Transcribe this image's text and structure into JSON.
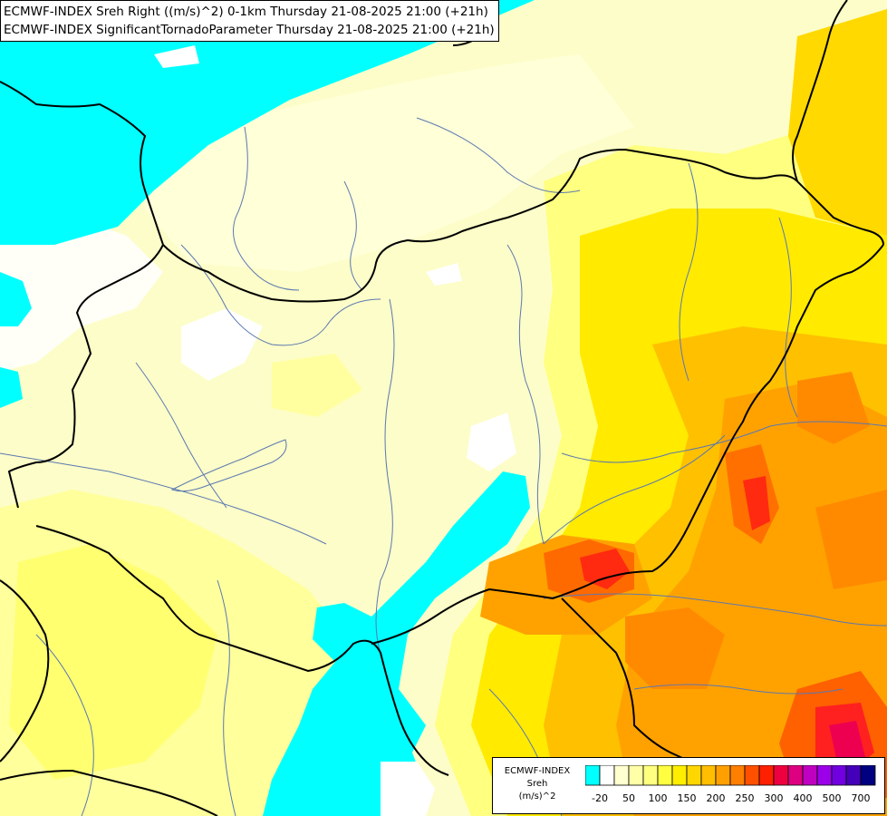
{
  "title": {
    "line1": "ECMWF-INDEX Sreh Right ((m/s)^2) 0-1km Thursday 21-08-2025 21:00 (+21h)",
    "line2": "ECMWF-INDEX SignificantTornadoParameter Thursday 21-08-2025 21:00 (+21h)"
  },
  "legend": {
    "line1": "ECMWF-INDEX",
    "line2": "Sreh",
    "line3": "(m/s)^2",
    "colors": [
      "#00ffff",
      "#ffffff",
      "#ffffd0",
      "#ffffa8",
      "#ffff80",
      "#ffff40",
      "#ffee00",
      "#ffd700",
      "#ffbe00",
      "#ffa000",
      "#ff7f00",
      "#ff5000",
      "#ff2000",
      "#ee0040",
      "#dd0080",
      "#c000c0",
      "#9b00e8",
      "#7000e0",
      "#4400b8",
      "#000080"
    ],
    "tick_labels": [
      "-20",
      "50",
      "100",
      "150",
      "200",
      "250",
      "300",
      "400",
      "500",
      "700"
    ]
  },
  "colors": {
    "background": "#fdfdc9",
    "cyan": "#00ffff",
    "border": "#000000",
    "river": "#5a78b0"
  }
}
